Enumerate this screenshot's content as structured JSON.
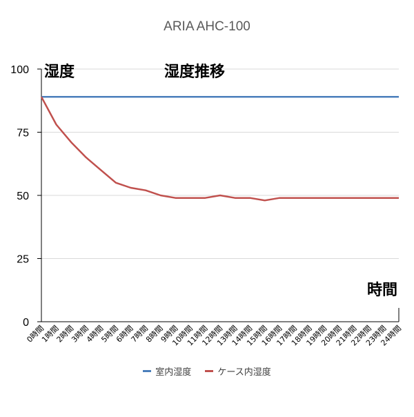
{
  "chart_data": {
    "type": "line",
    "title": "ARIA AHC-100",
    "subtitle": "湿度推移",
    "ylabel": "湿度",
    "xlabel": "時間",
    "ylim": [
      0,
      100
    ],
    "yticks": [
      0,
      25,
      50,
      75,
      100
    ],
    "grid": true,
    "legend_position": "bottom",
    "categories": [
      "0時間",
      "1時間",
      "2時間",
      "3時間",
      "4時間",
      "5時間",
      "6時間",
      "7時間",
      "8時間",
      "9時間",
      "10時間",
      "11時間",
      "12時間",
      "13時間",
      "14時間",
      "15時間",
      "16時間",
      "17時間",
      "18時間",
      "19時間",
      "20時間",
      "21時間",
      "22時間",
      "23時間",
      "24時間"
    ],
    "series": [
      {
        "name": "室内湿度",
        "color": "#4a7ebb",
        "values": [
          89,
          89,
          89,
          89,
          89,
          89,
          89,
          89,
          89,
          89,
          89,
          89,
          89,
          89,
          89,
          89,
          89,
          89,
          89,
          89,
          89,
          89,
          89,
          89,
          89
        ]
      },
      {
        "name": "ケース内湿度",
        "color": "#c0504d",
        "values": [
          89,
          78,
          71,
          65,
          60,
          55,
          53,
          52,
          50,
          49,
          49,
          49,
          50,
          49,
          49,
          48,
          49,
          49,
          49,
          49,
          49,
          49,
          49,
          49,
          49
        ]
      }
    ]
  }
}
